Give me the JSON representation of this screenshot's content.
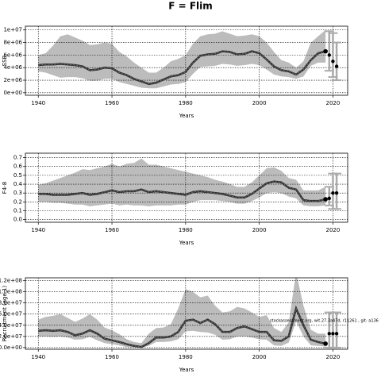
{
  "title": "F = Flim",
  "chart_data": [
    {
      "type": "line",
      "ylabel": "SSB",
      "xlabel": "Years",
      "xlim": [
        1936.5,
        2024
      ],
      "xticks": [
        1940,
        1960,
        1980,
        2000,
        2020
      ],
      "ylim": [
        -400000,
        10600000
      ],
      "yticks": [
        {
          "value": 0,
          "label": "0e+00"
        },
        {
          "value": 2000000,
          "label": "2e+06"
        },
        {
          "value": 4000000,
          "label": "4e+06"
        },
        {
          "value": 6000000,
          "label": "6e+06"
        },
        {
          "value": 8000000,
          "label": "8e+06"
        },
        {
          "value": 10000000,
          "label": "1e+07"
        }
      ],
      "grid": true,
      "color": "#333333",
      "band_color": "#bcbcbc",
      "x": [
        1940,
        1942,
        1944,
        1946,
        1948,
        1950,
        1952,
        1954,
        1956,
        1958,
        1960,
        1962,
        1964,
        1966,
        1968,
        1970,
        1972,
        1974,
        1976,
        1978,
        1980,
        1982,
        1984,
        1986,
        1988,
        1990,
        1992,
        1994,
        1996,
        1998,
        2000,
        2002,
        2004,
        2006,
        2008,
        2010,
        2012,
        2014,
        2016,
        2018
      ],
      "values": [
        4400000.0,
        4500000.0,
        4500000.0,
        4600000.0,
        4500000.0,
        4400000.0,
        4200000.0,
        3600000.0,
        3700000.0,
        4000000.0,
        3900000.0,
        3200000.0,
        2800000.0,
        2200000.0,
        1800000.0,
        1400000.0,
        1600000.0,
        2100000.0,
        2600000.0,
        2800000.0,
        3300000.0,
        4800000.0,
        5900000.0,
        6100000.0,
        6200000.0,
        6600000.0,
        6500000.0,
        6100000.0,
        6200000.0,
        6600000.0,
        6300000.0,
        5300000.0,
        4200000.0,
        3600000.0,
        3400000.0,
        2900000.0,
        3700000.0,
        5200000.0,
        6300000.0,
        6600000.0
      ],
      "upper": [
        6000000.0,
        6300000.0,
        7500000.0,
        9000000.0,
        9300000.0,
        8800000.0,
        8300000.0,
        7600000.0,
        7700000.0,
        8000000.0,
        7800000.0,
        6500000.0,
        5800000.0,
        4800000.0,
        4000000.0,
        3200000.0,
        3200000.0,
        4000000.0,
        5000000.0,
        5400000.0,
        6000000.0,
        7800000.0,
        9000000.0,
        9300000.0,
        9400000.0,
        9800000.0,
        9400000.0,
        9000000.0,
        9100000.0,
        9300000.0,
        9000000.0,
        8000000.0,
        6500000.0,
        5200000.0,
        4800000.0,
        4000000.0,
        5000000.0,
        8000000.0,
        9000000.0,
        10000000.0
      ],
      "lower": [
        3400000.0,
        3200000.0,
        2800000.0,
        2400000.0,
        2500000.0,
        2500000.0,
        2300000.0,
        1900000.0,
        1900000.0,
        2200000.0,
        2200000.0,
        1700000.0,
        1400000.0,
        1100000.0,
        800000.0,
        700000.0,
        700000.0,
        1000000.0,
        1300000.0,
        1400000.0,
        1700000.0,
        3000000.0,
        4100000.0,
        4200000.0,
        4300000.0,
        4600000.0,
        4500000.0,
        4300000.0,
        4400000.0,
        4600000.0,
        4400000.0,
        3700000.0,
        2900000.0,
        2600000.0,
        2500000.0,
        2200000.0,
        2600000.0,
        4300000.0,
        4800000.0,
        4800000.0
      ],
      "proj_x": [
        2019,
        2020,
        2021
      ],
      "proj_values": [
        6000000.0,
        5000000.0,
        4200000.0
      ],
      "proj_lower": [
        3500000.0,
        2500000.0,
        2000000.0
      ],
      "proj_upper": [
        9800000.0,
        9500000.0,
        8000000.0
      ]
    },
    {
      "type": "line",
      "ylabel": "F4-8",
      "xlabel": "Years",
      "xlim": [
        1936.5,
        2024
      ],
      "xticks": [
        1940,
        1960,
        1980,
        2000,
        2020
      ],
      "ylim": [
        -0.03,
        0.75
      ],
      "yticks": [
        {
          "value": 0,
          "label": "0.0"
        },
        0.1,
        0.2,
        0.3,
        0.4,
        0.5,
        0.6,
        0.7
      ],
      "grid": true,
      "color": "#333333",
      "band_color": "#bcbcbc",
      "x": [
        1940,
        1942,
        1944,
        1946,
        1948,
        1950,
        1952,
        1954,
        1956,
        1958,
        1960,
        1962,
        1964,
        1966,
        1968,
        1970,
        1972,
        1974,
        1976,
        1978,
        1980,
        1982,
        1984,
        1986,
        1988,
        1990,
        1992,
        1994,
        1996,
        1998,
        2000,
        2002,
        2004,
        2006,
        2008,
        2010,
        2012,
        2014,
        2016,
        2018
      ],
      "values": [
        0.29,
        0.29,
        0.28,
        0.28,
        0.28,
        0.29,
        0.3,
        0.28,
        0.29,
        0.31,
        0.33,
        0.31,
        0.32,
        0.32,
        0.34,
        0.31,
        0.32,
        0.31,
        0.3,
        0.29,
        0.28,
        0.31,
        0.32,
        0.31,
        0.3,
        0.29,
        0.27,
        0.25,
        0.25,
        0.29,
        0.35,
        0.41,
        0.43,
        0.42,
        0.36,
        0.34,
        0.22,
        0.21,
        0.21,
        0.23
      ],
      "upper": [
        0.39,
        0.41,
        0.44,
        0.47,
        0.5,
        0.53,
        0.57,
        0.56,
        0.58,
        0.6,
        0.63,
        0.6,
        0.63,
        0.64,
        0.69,
        0.62,
        0.62,
        0.6,
        0.58,
        0.56,
        0.54,
        0.52,
        0.5,
        0.48,
        0.45,
        0.43,
        0.4,
        0.37,
        0.37,
        0.42,
        0.5,
        0.58,
        0.59,
        0.55,
        0.47,
        0.45,
        0.33,
        0.33,
        0.33,
        0.37
      ],
      "lower": [
        0.2,
        0.2,
        0.19,
        0.19,
        0.18,
        0.17,
        0.17,
        0.15,
        0.16,
        0.17,
        0.18,
        0.16,
        0.17,
        0.16,
        0.16,
        0.15,
        0.16,
        0.16,
        0.16,
        0.17,
        0.17,
        0.2,
        0.22,
        0.22,
        0.22,
        0.21,
        0.2,
        0.18,
        0.18,
        0.21,
        0.25,
        0.3,
        0.31,
        0.3,
        0.26,
        0.24,
        0.16,
        0.15,
        0.15,
        0.16
      ],
      "proj_x": [
        2019,
        2020,
        2021
      ],
      "proj_values": [
        0.24,
        0.3,
        0.3
      ],
      "proj_lower": [
        0.16,
        0.12,
        0.12
      ],
      "proj_upper": [
        0.37,
        0.52,
        0.52
      ]
    },
    {
      "type": "line",
      "ylabel": "Recruitment (age 1)",
      "xlabel": "Years",
      "annotation": "stockassessment.org, wit.27.3a47d, r11261 , git: a136",
      "xlim": [
        1936.5,
        2024
      ],
      "xticks": [
        1940,
        1960,
        1980,
        2000,
        2020
      ],
      "ylim": [
        -3000000,
        125000000
      ],
      "yticks": [
        {
          "value": 0,
          "label": "0.0e+00"
        },
        {
          "value": 20000000,
          "label": "2.0e+07"
        },
        {
          "value": 40000000,
          "label": "4.0e+07"
        },
        {
          "value": 60000000,
          "label": "6.0e+07"
        },
        {
          "value": 80000000,
          "label": "8.0e+07"
        },
        {
          "value": 100000000,
          "label": "1.0e+08"
        },
        {
          "value": 120000000,
          "label": "1.2e+08"
        }
      ],
      "grid": true,
      "color": "#333333",
      "band_color": "#bcbcbc",
      "x": [
        1940,
        1942,
        1944,
        1946,
        1948,
        1950,
        1952,
        1954,
        1956,
        1958,
        1960,
        1962,
        1964,
        1966,
        1968,
        1970,
        1972,
        1974,
        1976,
        1978,
        1980,
        1982,
        1984,
        1986,
        1988,
        1990,
        1992,
        1994,
        1996,
        1998,
        2000,
        2002,
        2004,
        2006,
        2008,
        2010,
        2012,
        2014,
        2016,
        2018
      ],
      "values": [
        30000000.0,
        31000000.0,
        30000000.0,
        31000000.0,
        28000000.0,
        22000000.0,
        25000000.0,
        31000000.0,
        25000000.0,
        16000000.0,
        13000000.0,
        10000000.0,
        6000000.0,
        3000000.0,
        1000000.0,
        8000000.0,
        18000000.0,
        18000000.0,
        20000000.0,
        28000000.0,
        48000000.0,
        50000000.0,
        44000000.0,
        50000000.0,
        42000000.0,
        28000000.0,
        28000000.0,
        35000000.0,
        38000000.0,
        33000000.0,
        28000000.0,
        28000000.0,
        13000000.0,
        12000000.0,
        20000000.0,
        70000000.0,
        40000000.0,
        14000000.0,
        10000000.0,
        7000000.0
      ],
      "upper": [
        50000000.0,
        55000000.0,
        57000000.0,
        60000000.0,
        53000000.0,
        46000000.0,
        52000000.0,
        60000000.0,
        50000000.0,
        36000000.0,
        31000000.0,
        24000000.0,
        15000000.0,
        10000000.0,
        8000000.0,
        25000000.0,
        35000000.0,
        36000000.0,
        42000000.0,
        70000000.0,
        105000000.0,
        100000000.0,
        90000000.0,
        93000000.0,
        75000000.0,
        63000000.0,
        65000000.0,
        73000000.0,
        70000000.0,
        63000000.0,
        55000000.0,
        58000000.0,
        35000000.0,
        28000000.0,
        45000000.0,
        135000000.0,
        75000000.0,
        32000000.0,
        25000000.0,
        25000000.0
      ],
      "lower": [
        20000000.0,
        20000000.0,
        19000000.0,
        20000000.0,
        18000000.0,
        14000000.0,
        15000000.0,
        19000000.0,
        13000000.0,
        8000000.0,
        6000000.0,
        4000000.0,
        1000000.0,
        0,
        0,
        3000000.0,
        10000000.0,
        10000000.0,
        11000000.0,
        15000000.0,
        29000000.0,
        30000000.0,
        28000000.0,
        27000000.0,
        23000000.0,
        14000000.0,
        15000000.0,
        20000000.0,
        20000000.0,
        18000000.0,
        15000000.0,
        14000000.0,
        4000000.0,
        3000000.0,
        9000000.0,
        47000000.0,
        20000000.0,
        4000000.0,
        3000000.0,
        2000000.0
      ],
      "proj_x": [
        2019,
        2020,
        2021
      ],
      "proj_values": [
        25000000.0,
        25000000.0,
        25000000.0
      ],
      "proj_lower": [
        0,
        0,
        0
      ],
      "proj_upper": [
        63000000.0,
        63000000.0,
        63000000.0
      ]
    }
  ]
}
